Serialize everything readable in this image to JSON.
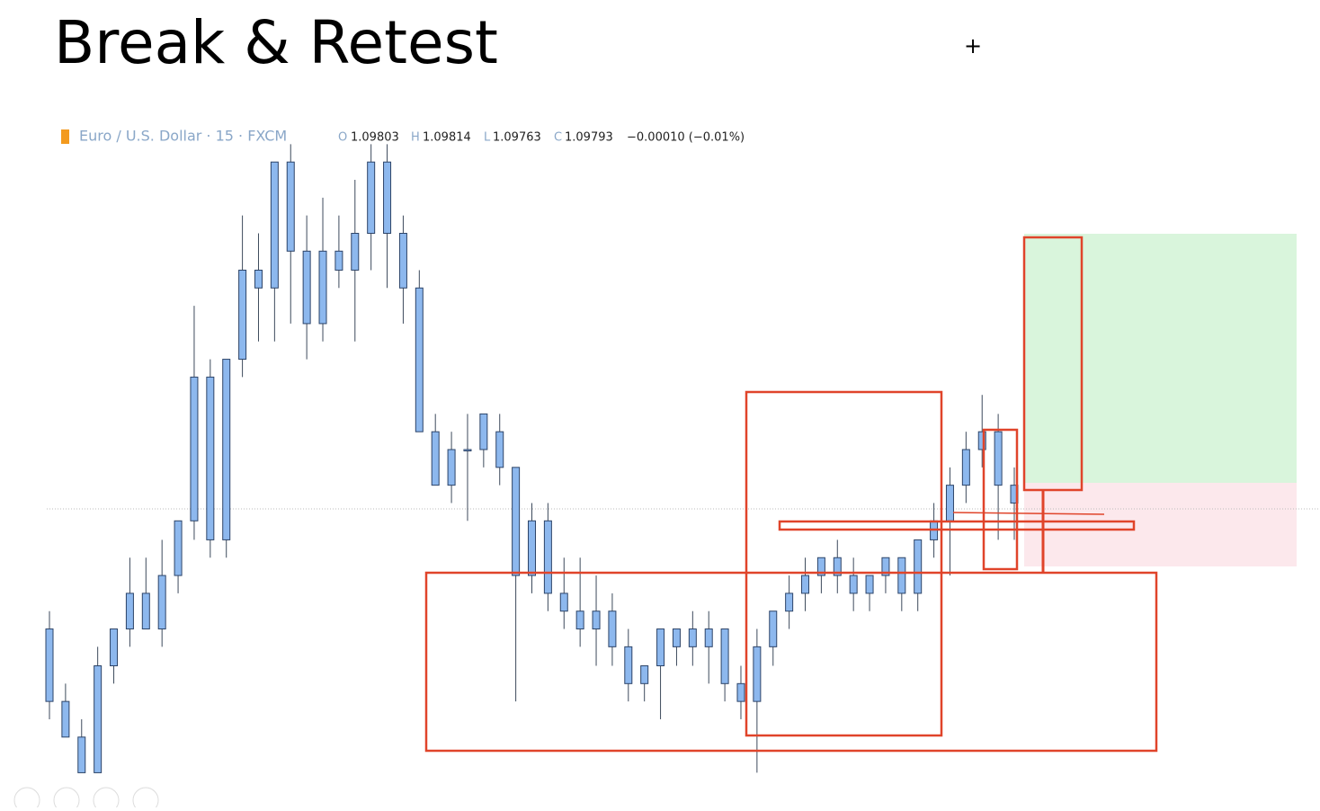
{
  "title": "Break & Retest",
  "chart_data": {
    "type": "candlestick",
    "symbol": "Euro / U.S. Dollar · 15 · FXCM",
    "ohlc_header": {
      "o_label": "O",
      "o": "1.09803",
      "h_label": "H",
      "h": "1.09814",
      "l_label": "L",
      "l": "1.09763",
      "c_label": "C",
      "c": "1.09793",
      "change": "−0.00010 (−0.01%)"
    },
    "ylim": [
      1.0956,
      1.1012
    ],
    "color": "#8db8ee",
    "open": [
      1.09689,
      1.09628,
      1.09598,
      1.09568,
      1.09658,
      1.09689,
      1.09719,
      1.09689,
      1.09734,
      1.0978,
      1.09901,
      1.09764,
      1.09916,
      1.09991,
      1.09976,
      1.10082,
      1.10007,
      1.09946,
      1.10007,
      1.09991,
      1.10022,
      1.10082,
      1.10022,
      1.09976,
      1.09855,
      1.0981,
      1.0984,
      1.0984,
      1.09855,
      1.09825,
      1.09734,
      1.0978,
      1.09719,
      1.09704,
      1.09689,
      1.09704,
      1.09674,
      1.09643,
      1.09658,
      1.09674,
      1.09689,
      1.09674,
      1.09689,
      1.09643,
      1.09628,
      1.09674,
      1.09704,
      1.09719,
      1.09734,
      1.09749,
      1.09734,
      1.09719,
      1.09734,
      1.09749,
      1.09719,
      1.09764,
      1.0978,
      1.0981,
      1.0984,
      1.09855,
      1.0981
    ],
    "high": [
      1.09704,
      1.09643,
      1.09613,
      1.09674,
      1.09689,
      1.09749,
      1.09749,
      1.09764,
      1.0978,
      1.09961,
      1.09916,
      1.09916,
      1.10037,
      1.10022,
      1.10082,
      1.10097,
      1.10037,
      1.10052,
      1.10037,
      1.10067,
      1.10097,
      1.10097,
      1.10037,
      1.09991,
      1.0987,
      1.09855,
      1.0987,
      1.0987,
      1.0987,
      1.09825,
      1.09795,
      1.09795,
      1.09749,
      1.09749,
      1.09734,
      1.09719,
      1.09689,
      1.09658,
      1.09689,
      1.09689,
      1.09704,
      1.09704,
      1.09689,
      1.09658,
      1.09689,
      1.09704,
      1.09734,
      1.09749,
      1.09749,
      1.09764,
      1.09749,
      1.09734,
      1.09749,
      1.09749,
      1.09764,
      1.09795,
      1.09825,
      1.09855,
      1.09886,
      1.0987,
      1.09825
    ],
    "low": [
      1.09613,
      1.09598,
      1.09568,
      1.09568,
      1.09643,
      1.09674,
      1.09689,
      1.09674,
      1.09719,
      1.09764,
      1.09749,
      1.09749,
      1.09901,
      1.09931,
      1.09931,
      1.09946,
      1.09916,
      1.09931,
      1.09976,
      1.09931,
      1.09991,
      1.09976,
      1.09946,
      1.09855,
      1.0981,
      1.09795,
      1.0978,
      1.09825,
      1.0981,
      1.09628,
      1.09719,
      1.09704,
      1.09689,
      1.09674,
      1.09658,
      1.09658,
      1.09628,
      1.09628,
      1.09613,
      1.09658,
      1.09658,
      1.09643,
      1.09628,
      1.09613,
      1.09568,
      1.09658,
      1.09689,
      1.09704,
      1.09719,
      1.09719,
      1.09704,
      1.09704,
      1.09719,
      1.09704,
      1.09704,
      1.09749,
      1.09734,
      1.09795,
      1.09825,
      1.09764,
      1.09764
    ],
    "close": [
      1.09628,
      1.09598,
      1.09568,
      1.09658,
      1.09689,
      1.09719,
      1.09689,
      1.09734,
      1.0978,
      1.09901,
      1.09764,
      1.09916,
      1.09991,
      1.09976,
      1.10082,
      1.10007,
      1.09946,
      1.10007,
      1.09991,
      1.10022,
      1.10082,
      1.10022,
      1.09976,
      1.09855,
      1.0981,
      1.0984,
      1.0984,
      1.0987,
      1.09825,
      1.09734,
      1.0978,
      1.09719,
      1.09704,
      1.09689,
      1.09704,
      1.09674,
      1.09643,
      1.09658,
      1.09689,
      1.09689,
      1.09674,
      1.09689,
      1.09643,
      1.09628,
      1.09674,
      1.09704,
      1.09719,
      1.09734,
      1.09749,
      1.09734,
      1.09719,
      1.09734,
      1.09749,
      1.09719,
      1.09764,
      1.0978,
      1.0981,
      1.0984,
      1.09855,
      1.0981,
      1.09795
    ]
  }
}
